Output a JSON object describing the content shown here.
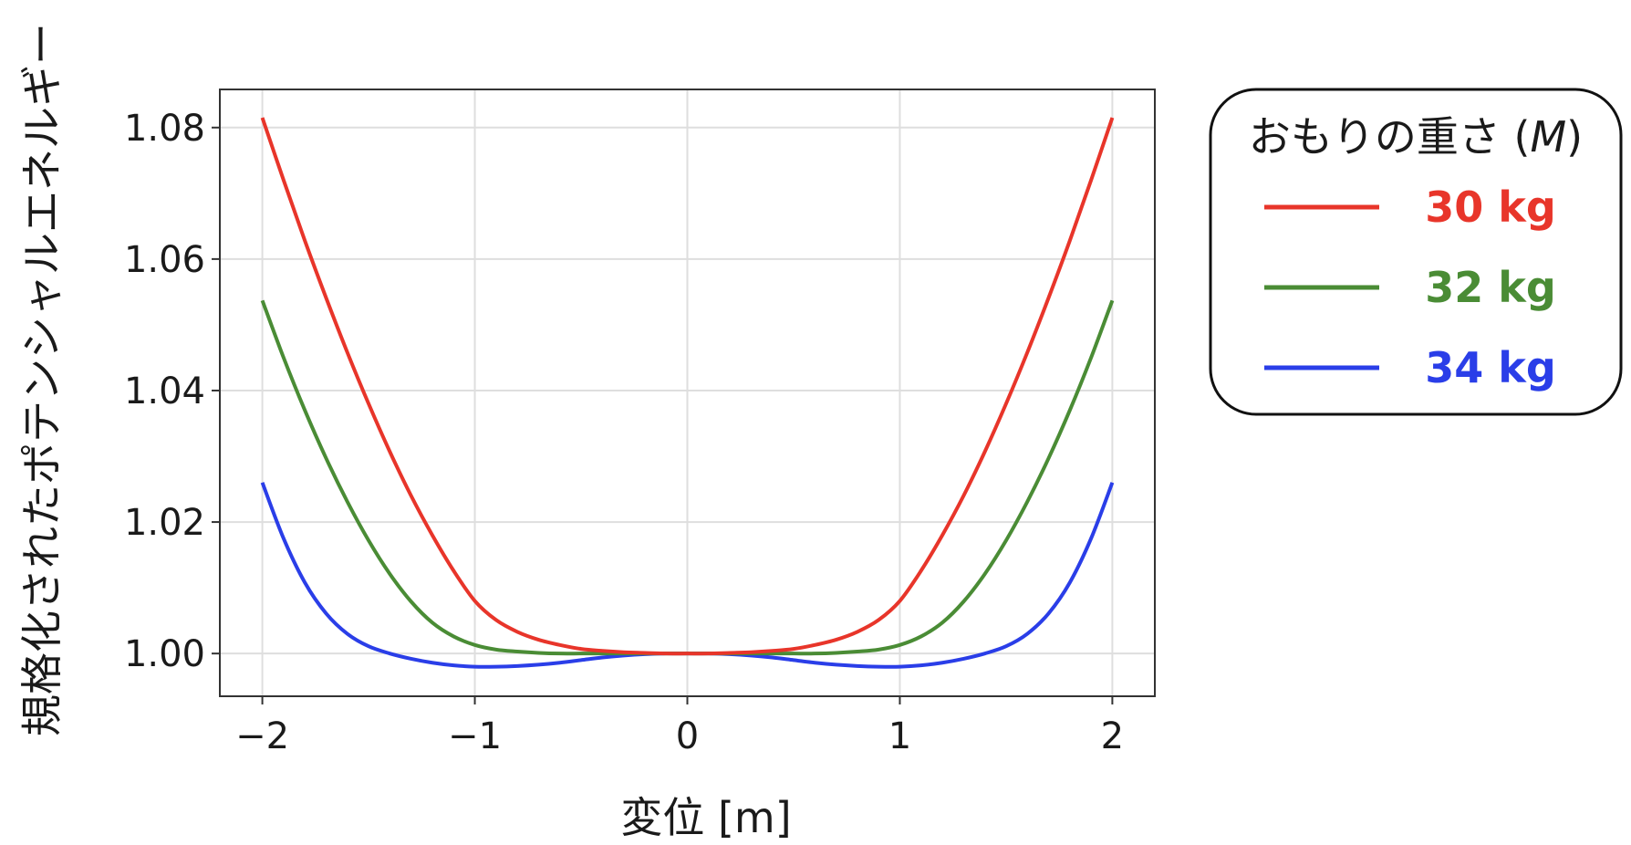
{
  "chart_data": {
    "type": "line",
    "title": "",
    "xlabel": "変位 [m]",
    "ylabel": "規格化されたポテンシャルエネルギー",
    "xlim": [
      -2.2,
      2.2
    ],
    "ylim": [
      0.9935,
      1.0858
    ],
    "xticks": [
      -2,
      -1,
      0,
      1,
      2
    ],
    "xtick_labels": [
      "−2",
      "−1",
      "0",
      "1",
      "2"
    ],
    "yticks": [
      1.0,
      1.02,
      1.04,
      1.06,
      1.08
    ],
    "ytick_labels": [
      "1.00",
      "1.02",
      "1.04",
      "1.06",
      "1.08"
    ],
    "grid": true,
    "legend": {
      "title_prefix": "おもりの重さ (",
      "title_symbol": "M",
      "title_suffix": ")",
      "placement": "outside-top-right"
    },
    "x": [
      -2.0,
      -1.9,
      -1.8,
      -1.7,
      -1.6,
      -1.5,
      -1.4,
      -1.3,
      -1.2,
      -1.1,
      -1.0,
      -0.9,
      -0.8,
      -0.7,
      -0.6,
      -0.5,
      -0.4,
      -0.3,
      -0.2,
      -0.1,
      0.0,
      0.1,
      0.2,
      0.3,
      0.4,
      0.5,
      0.6,
      0.7,
      0.8,
      0.9,
      1.0,
      1.1,
      1.2,
      1.3,
      1.4,
      1.5,
      1.6,
      1.7,
      1.8,
      1.9,
      2.0
    ],
    "series": [
      {
        "name": "30 kg",
        "color": "#e8352a",
        "values": [
          1.0815,
          1.072,
          1.0628,
          1.0541,
          1.0458,
          1.038,
          1.0307,
          1.024,
          1.018,
          1.0126,
          1.008,
          1.0051,
          1.0033,
          1.0021,
          1.0013,
          1.0007,
          1.0004,
          1.0002,
          1.0001,
          1.0,
          1.0,
          1.0,
          1.0001,
          1.0002,
          1.0004,
          1.0007,
          1.0013,
          1.0021,
          1.0033,
          1.0051,
          1.008,
          1.0126,
          1.018,
          1.024,
          1.0307,
          1.038,
          1.0458,
          1.0541,
          1.0628,
          1.072,
          1.0815
        ]
      },
      {
        "name": "32 kg",
        "color": "#4a8c35",
        "values": [
          1.0537,
          1.045,
          1.037,
          1.0297,
          1.0231,
          1.0172,
          1.0121,
          1.0079,
          1.0047,
          1.0026,
          1.0013,
          1.0006,
          1.0003,
          1.0001,
          1.0,
          1.0,
          1.0,
          1.0,
          1.0,
          1.0,
          1.0,
          1.0,
          1.0,
          1.0,
          1.0,
          1.0,
          1.0,
          1.0001,
          1.0003,
          1.0006,
          1.0013,
          1.0026,
          1.0047,
          1.0079,
          1.0121,
          1.0172,
          1.0231,
          1.0297,
          1.037,
          1.045,
          1.0537
        ]
      },
      {
        "name": "34 kg",
        "color": "#2a3ee8",
        "values": [
          1.026,
          1.0175,
          1.0108,
          1.0061,
          1.003,
          1.0011,
          1.0,
          0.9992,
          0.9986,
          0.9982,
          0.998,
          0.998,
          0.9981,
          0.9983,
          0.9986,
          0.999,
          0.9994,
          0.9997,
          0.9999,
          1.0,
          1.0,
          1.0,
          0.9999,
          0.9997,
          0.9994,
          0.999,
          0.9986,
          0.9983,
          0.9981,
          0.998,
          0.998,
          0.9982,
          0.9986,
          0.9992,
          1.0,
          1.0011,
          1.003,
          1.0061,
          1.0108,
          1.0175,
          1.026
        ]
      }
    ]
  }
}
